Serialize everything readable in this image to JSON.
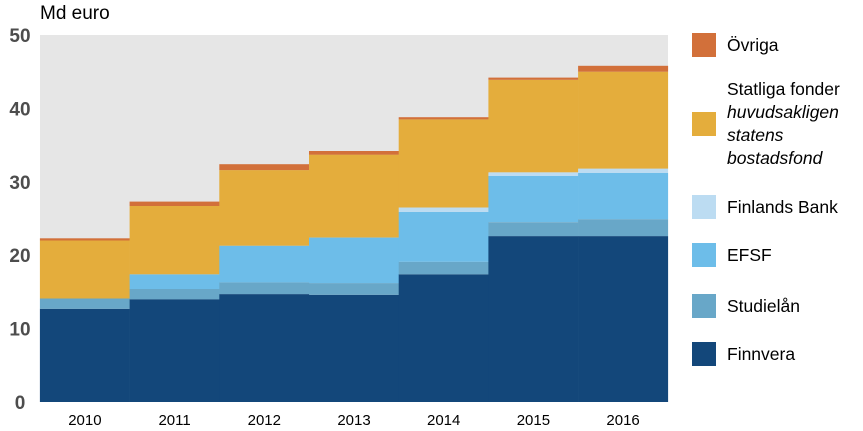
{
  "chart_data": {
    "type": "bar",
    "stacked": true,
    "ylabel": "Md euro",
    "ylim": [
      0,
      50
    ],
    "yticks": [
      0,
      10,
      20,
      30,
      40,
      50
    ],
    "grid": false,
    "legend_position": "right",
    "categories": [
      "2010",
      "2011",
      "2012",
      "2013",
      "2014",
      "2015",
      "2016"
    ],
    "series": [
      {
        "name": "Finnvera",
        "color": "#13477a",
        "values": [
          12.7,
          14.0,
          14.7,
          14.6,
          17.4,
          22.6,
          22.6
        ]
      },
      {
        "name": "Studielån",
        "color": "#68a7c8",
        "values": [
          1.4,
          1.4,
          1.6,
          1.6,
          1.7,
          1.9,
          2.3
        ]
      },
      {
        "name": "EFSF",
        "color": "#6dbde9",
        "values": [
          0.0,
          2.0,
          5.0,
          6.2,
          6.8,
          6.3,
          6.3
        ]
      },
      {
        "name": "Finlands Bank",
        "color": "#bcdcf2",
        "values": [
          0.0,
          0.0,
          0.0,
          0.0,
          0.6,
          0.5,
          0.6
        ]
      },
      {
        "name": "Statliga fonder",
        "name_italic": "huvudsakligen statens bostadsfond",
        "color": "#e4ad3c",
        "values": [
          7.9,
          9.3,
          10.3,
          11.3,
          12.0,
          12.6,
          13.2
        ]
      },
      {
        "name": "Övriga",
        "color": "#d2703a",
        "values": [
          0.3,
          0.6,
          0.8,
          0.5,
          0.3,
          0.3,
          0.8
        ]
      }
    ]
  },
  "legend": {
    "items": [
      {
        "label": "Övriga",
        "color": "#d2703a"
      },
      {
        "label": "Statliga fonder",
        "italic": [
          "huvudsakligen",
          "statens",
          "bostadsfond"
        ],
        "color": "#e4ad3c"
      },
      {
        "label": "Finlands Bank",
        "color": "#bcdcf2"
      },
      {
        "label": "EFSF",
        "color": "#6dbde9"
      },
      {
        "label": "Studielån",
        "color": "#68a7c8"
      },
      {
        "label": "Finnvera",
        "color": "#13477a"
      }
    ]
  }
}
